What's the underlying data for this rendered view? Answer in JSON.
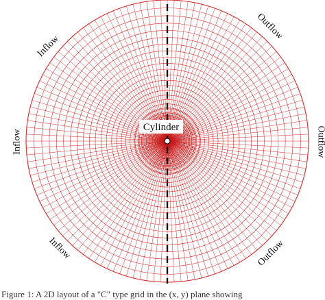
{
  "diagram": {
    "cylinder_label": "Cylinder",
    "boundary_labels": {
      "inflow_top_left": "Inflow",
      "inflow_left": "Inflow",
      "inflow_bottom_left": "Inflow",
      "outflow_top_right": "Outflow",
      "outflow_right": "Outflow",
      "outflow_bottom_right": "Outflow"
    },
    "colors": {
      "mesh": "#d42a2a",
      "mesh_dense": "#c41818",
      "dashed_line": "#111111",
      "label_text": "#111111",
      "label_background": "#ffffff"
    }
  },
  "caption": {
    "text": "Figure 1: A 2D layout of a \"C\" type grid in the (x, y) plane showing"
  }
}
